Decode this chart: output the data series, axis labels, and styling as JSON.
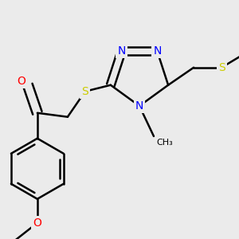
{
  "background_color": "#EBEBEB",
  "bond_color": "#000000",
  "bond_width": 1.8,
  "atom_colors": {
    "N": "#0000FF",
    "S": "#CCCC00",
    "O": "#FF0000",
    "C": "#000000"
  },
  "font_size_atom": 10,
  "fig_width": 3.0,
  "fig_height": 3.0,
  "dpi": 100
}
